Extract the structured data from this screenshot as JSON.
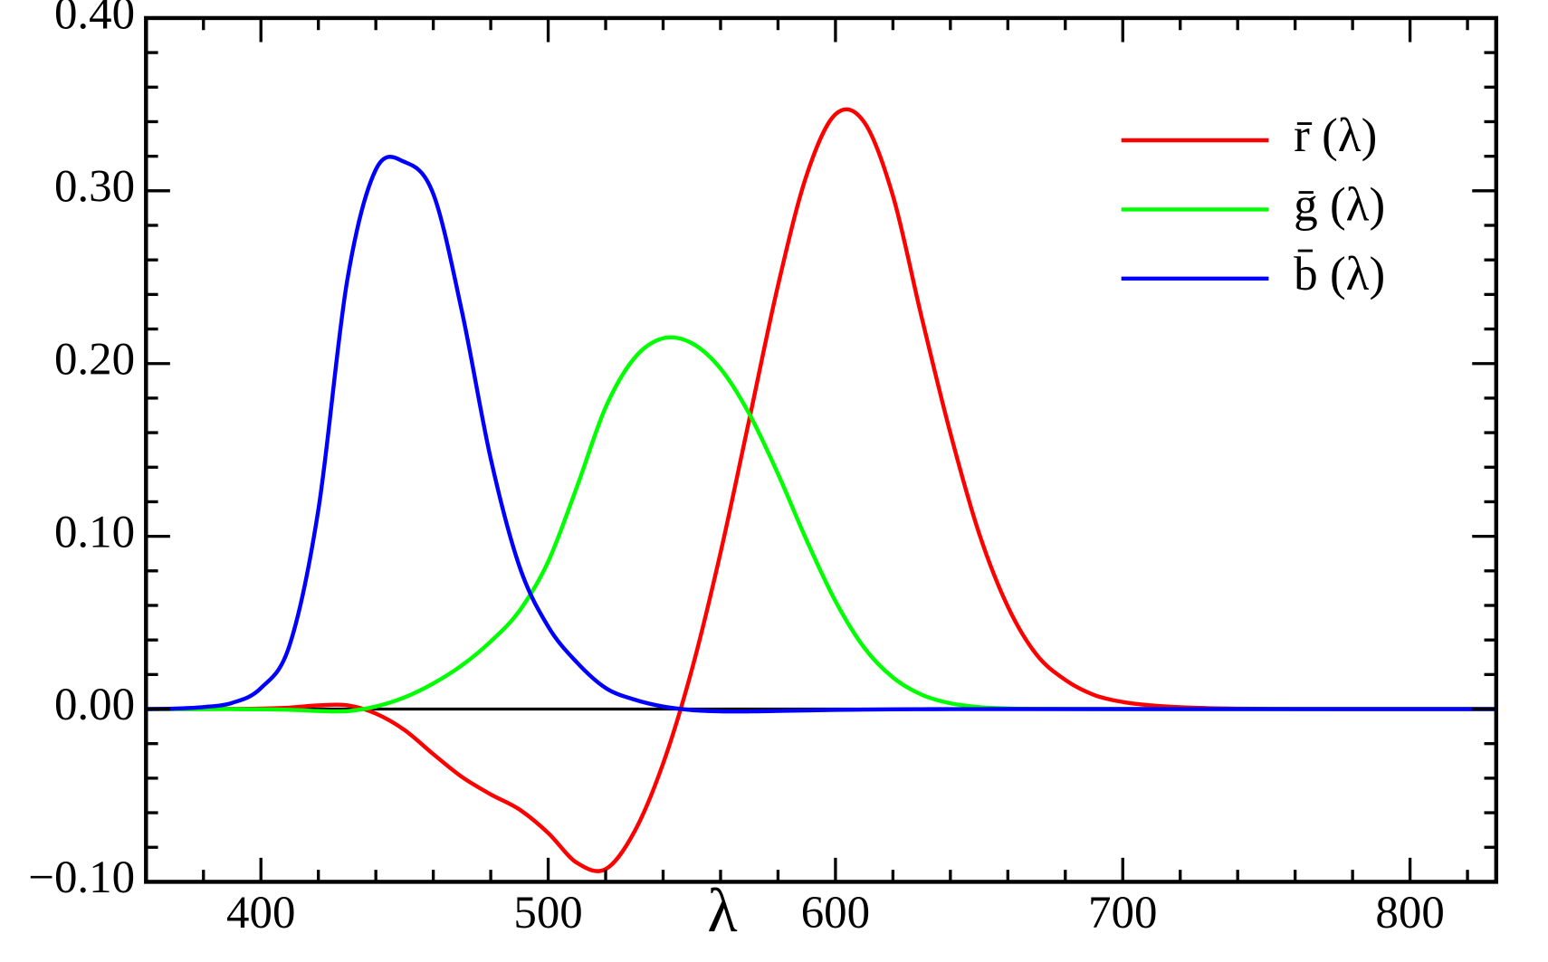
{
  "chart_data": {
    "type": "line",
    "xlabel": "λ",
    "x": [
      360,
      370,
      380,
      390,
      400,
      410,
      420,
      430,
      440,
      450,
      460,
      470,
      480,
      490,
      500,
      510,
      520,
      530,
      540,
      550,
      560,
      570,
      580,
      590,
      600,
      610,
      620,
      630,
      640,
      650,
      660,
      670,
      680,
      690,
      700,
      710,
      720,
      730,
      740,
      750,
      760,
      770,
      780,
      790,
      800,
      810,
      820,
      830
    ],
    "series": [
      {
        "name": "r̄ (λ)",
        "color": "#ff0000",
        "values": [
          0,
          0,
          3e-05,
          0.0001,
          0.0003,
          0.00084,
          0.00211,
          0.00218,
          -0.00261,
          -0.01213,
          -0.02608,
          -0.03933,
          -0.04939,
          -0.05814,
          -0.07173,
          -0.08901,
          -0.09264,
          -0.07101,
          -0.03152,
          0.02279,
          0.0906,
          0.16768,
          0.24526,
          0.30928,
          0.34429,
          0.33971,
          0.29708,
          0.22677,
          0.15968,
          0.10167,
          0.05932,
          0.03149,
          0.01687,
          0.00819,
          0.0041,
          0.0021,
          0.00105,
          0.00052,
          0.00025,
          0.00012,
          6e-05,
          3e-05,
          1e-05,
          0,
          0,
          0,
          0,
          0
        ]
      },
      {
        "name": "ḡ (λ)",
        "color": "#00ff00",
        "values": [
          0,
          0,
          -1e-05,
          -4e-05,
          -0.00014,
          -0.00041,
          -0.0011,
          -0.00119,
          0.00149,
          0.00678,
          0.01485,
          0.02538,
          0.03914,
          0.05689,
          0.08536,
          0.1286,
          0.17468,
          0.20317,
          0.21466,
          0.21178,
          0.19702,
          0.17087,
          0.1361,
          0.09754,
          0.06246,
          0.03557,
          0.01828,
          0.00833,
          0.00334,
          0.00116,
          0.00037,
          0.00011,
          3e-05,
          0,
          0,
          0,
          0,
          0,
          0,
          0,
          0,
          0,
          0,
          0,
          0,
          0,
          0,
          0
        ]
      },
      {
        "name": "b̄ (λ)",
        "color": "#0000ff",
        "values": [
          0,
          0.0003,
          0.00117,
          0.00359,
          0.01214,
          0.03707,
          0.11541,
          0.24769,
          0.31228,
          0.3167,
          0.29821,
          0.22991,
          0.14494,
          0.08257,
          0.04776,
          0.02698,
          0.01221,
          0.00549,
          0.00146,
          -0.00058,
          -0.0013,
          -0.00135,
          -0.00108,
          -0.00079,
          -0.00049,
          -0.0003,
          -0.00015,
          -8e-05,
          -3e-05,
          -1e-05,
          0,
          0,
          0,
          0,
          0,
          0,
          0,
          0,
          0,
          0,
          0,
          0,
          0,
          0,
          0,
          0,
          0,
          0
        ]
      }
    ],
    "xlim": [
      360,
      830
    ],
    "ylim": [
      -0.1,
      0.4
    ],
    "xticks": [
      400,
      500,
      600,
      700,
      800
    ],
    "yticks": [
      {
        "value": -0.1,
        "label": "−0.10"
      },
      {
        "value": 0,
        "label": "0.00"
      },
      {
        "value": 0.1,
        "label": "0.10"
      },
      {
        "value": 0.2,
        "label": "0.20"
      },
      {
        "value": 0.3,
        "label": "0.30"
      },
      {
        "value": 0.4,
        "label": "0.40"
      }
    ],
    "xminorticks": [
      360,
      380,
      420,
      440,
      460,
      480,
      520,
      540,
      560,
      580,
      620,
      640,
      660,
      680,
      720,
      740,
      760,
      780,
      820
    ],
    "yminorticks": [
      -0.08,
      -0.06,
      -0.04,
      -0.02,
      0.02,
      0.04,
      0.06,
      0.08,
      0.12,
      0.14,
      0.16,
      0.18,
      0.22,
      0.24,
      0.26,
      0.28,
      0.32,
      0.34,
      0.36,
      0.38
    ],
    "zero_line": 0,
    "legend": "upper right"
  }
}
